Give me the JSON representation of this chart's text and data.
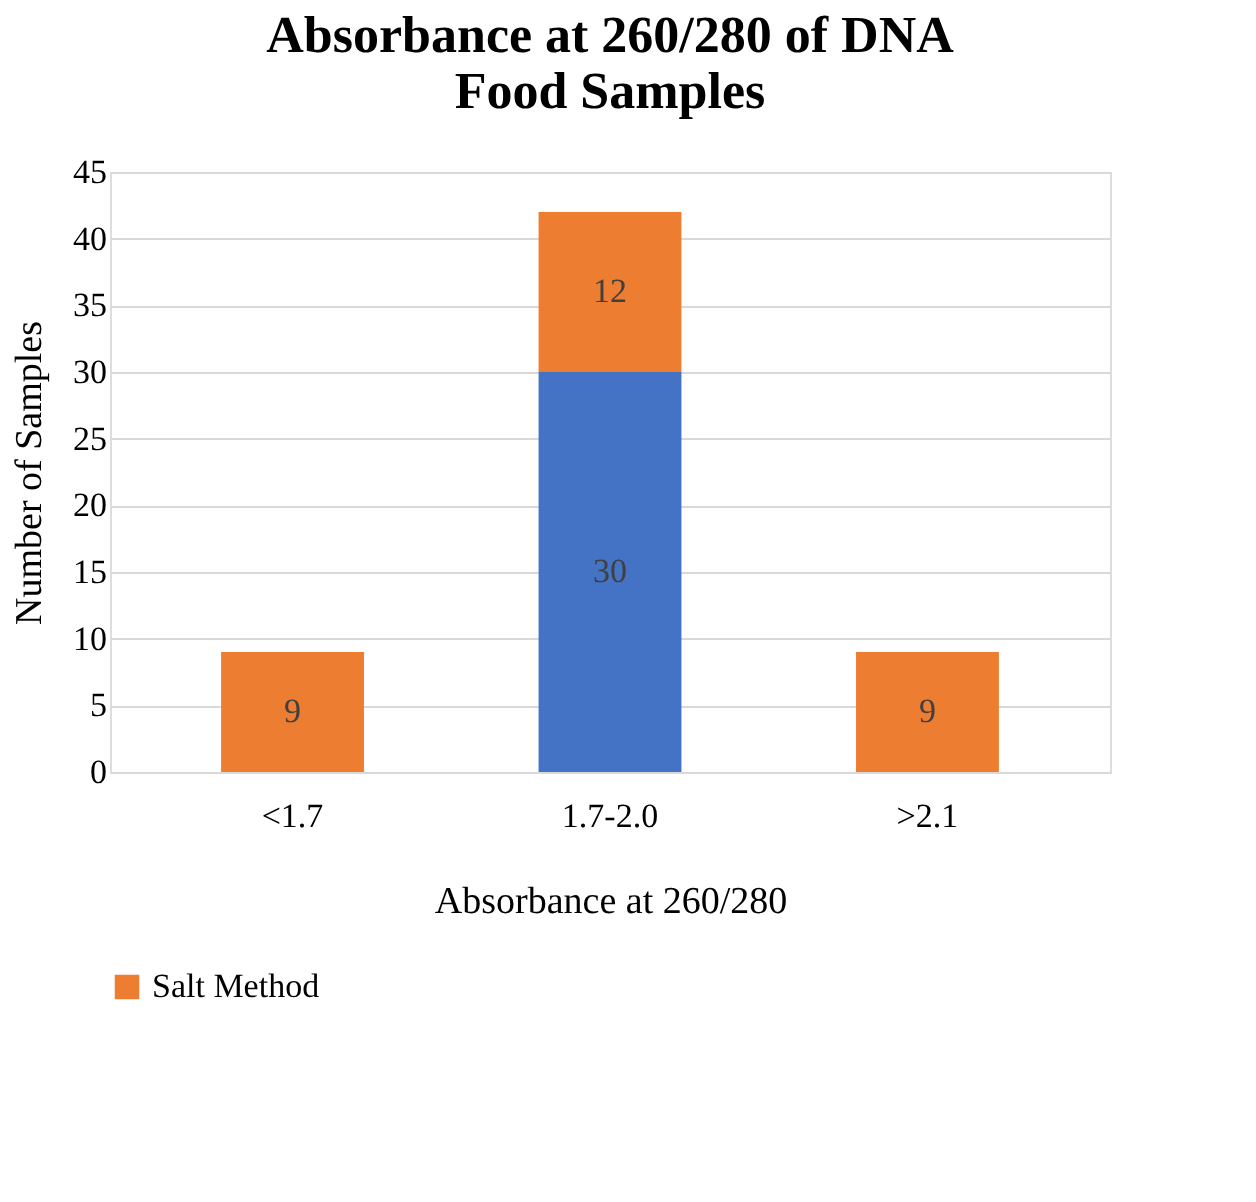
{
  "chart_data": {
    "type": "bar",
    "title": "Absorbance at 260/280 of DNA Food Samples",
    "xlabel": "Absorbance at 260/280",
    "ylabel": "Number of Samples",
    "categories": [
      "<1.7",
      "1.7-2.0",
      ">2.1"
    ],
    "stacked": true,
    "series": [
      {
        "color": "#4472c4",
        "values": [
          null,
          30,
          null
        ],
        "value_labels": [
          null,
          "30",
          null
        ]
      },
      {
        "name": "Salt Method",
        "color": "#ed7d31",
        "values": [
          9,
          12,
          9
        ],
        "value_labels": [
          "9",
          "12",
          "9"
        ]
      }
    ],
    "ylim": [
      0,
      45
    ],
    "yticks": [
      0,
      5,
      10,
      15,
      20,
      25,
      30,
      35,
      40,
      45
    ],
    "grid": "y",
    "legend": "bottom"
  }
}
